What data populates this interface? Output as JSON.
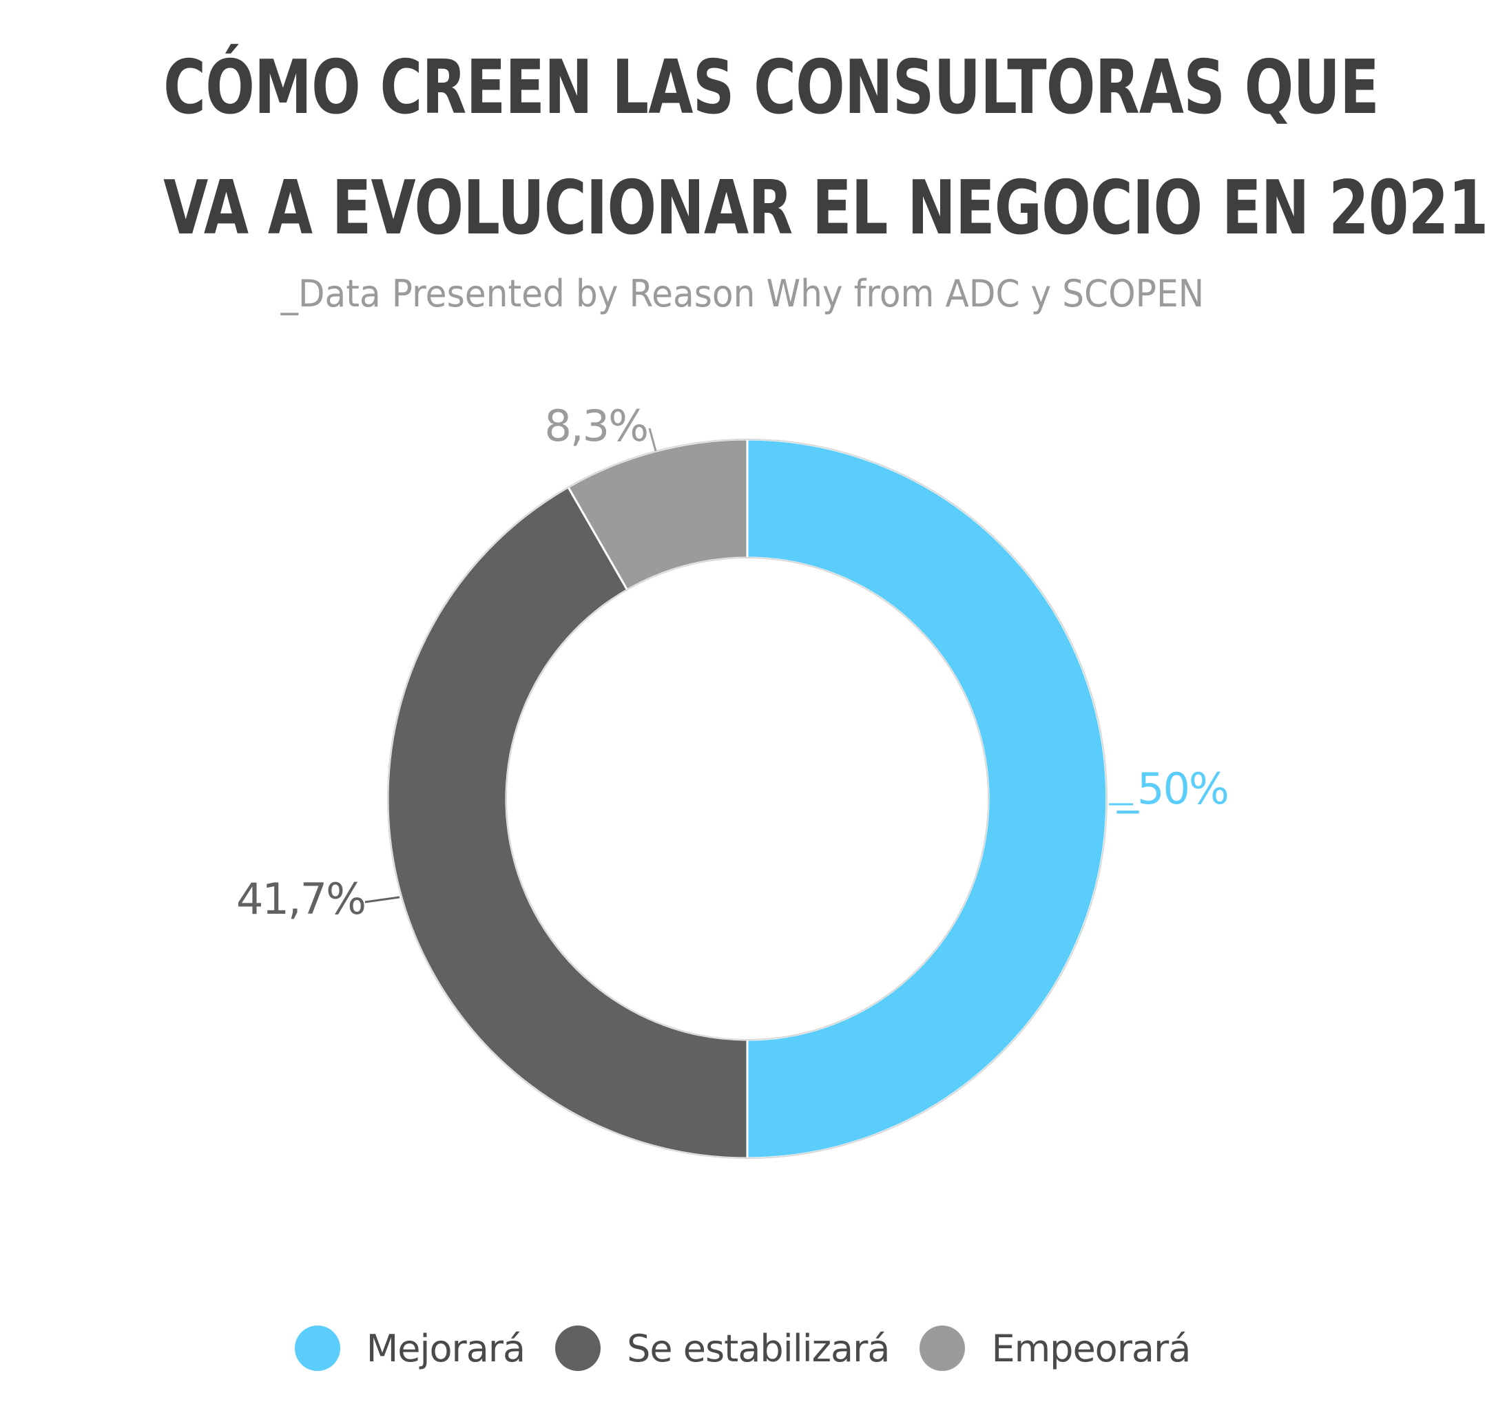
{
  "chart_data": {
    "type": "pie",
    "title_lines": [
      "CÓMO CREEN LAS CONSULTORAS QUE",
      "VA A EVOLUCIONAR EL NEGOCIO EN 2021"
    ],
    "subtitle": "_Data Presented by Reason Why from ADC y SCOPEN",
    "donut": true,
    "legend_position": "bottom",
    "slices": [
      {
        "name": "Mejorará",
        "value": 50,
        "label": "_50%",
        "color": "#5bcdfb",
        "label_color": "#5bcdfb"
      },
      {
        "name": "Se estabilizará",
        "value": 41.7,
        "label": "41,7%",
        "color": "#616161",
        "label_color": "#616161"
      },
      {
        "name": "Empeorará",
        "value": 8.3,
        "label": "8,3%",
        "color": "#9b9b9b",
        "label_color": "#9b9b9b"
      }
    ]
  }
}
